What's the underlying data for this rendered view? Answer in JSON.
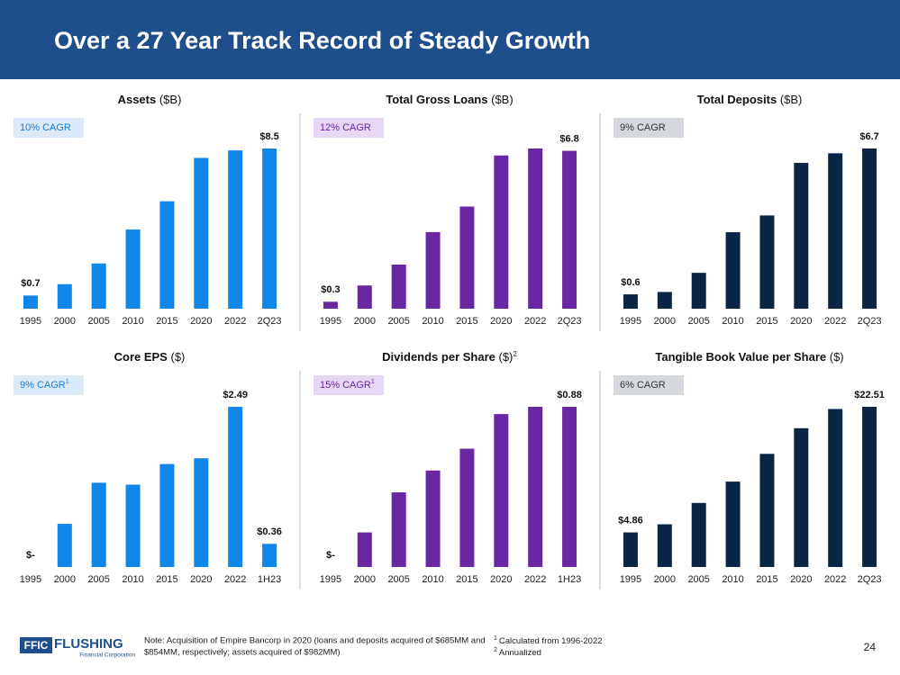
{
  "title": "Over a 27 Year Track Record of Steady Growth",
  "chart_data": [
    {
      "type": "bar",
      "title": "Assets",
      "unit": "($B)",
      "annotation": "10% CAGR",
      "categories": [
        "1995",
        "2000",
        "2005",
        "2010",
        "2015",
        "2020",
        "2022",
        "2Q23"
      ],
      "values": [
        0.7,
        1.3,
        2.4,
        4.2,
        5.7,
        8.0,
        8.4,
        8.5
      ],
      "value_labels": [
        "$0.7",
        null,
        null,
        null,
        null,
        null,
        null,
        "$8.5"
      ],
      "color": "#0f86e8"
    },
    {
      "type": "bar",
      "title": "Total Gross Loans",
      "unit": "($B)",
      "annotation": "12% CAGR",
      "categories": [
        "1995",
        "2000",
        "2005",
        "2010",
        "2015",
        "2020",
        "2022",
        "2Q23"
      ],
      "values": [
        0.3,
        1.0,
        1.9,
        3.3,
        4.4,
        6.6,
        6.9,
        6.8
      ],
      "value_labels": [
        "$0.3",
        null,
        null,
        null,
        null,
        null,
        null,
        "$6.8"
      ],
      "color": "#6a27a3"
    },
    {
      "type": "bar",
      "title": "Total Deposits",
      "unit": "($B)",
      "annotation": "9% CAGR",
      "categories": [
        "1995",
        "2000",
        "2005",
        "2010",
        "2015",
        "2020",
        "2022",
        "2Q23"
      ],
      "values": [
        0.6,
        0.7,
        1.5,
        3.2,
        3.9,
        6.1,
        6.5,
        6.7
      ],
      "value_labels": [
        "$0.6",
        null,
        null,
        null,
        null,
        null,
        null,
        "$6.7"
      ],
      "color": "#0b2545"
    },
    {
      "type": "bar",
      "title": "Core EPS",
      "unit": "($)",
      "annotation": "9% CAGR",
      "annotation_note": "1",
      "categories": [
        "1995",
        "2000",
        "2005",
        "2010",
        "2015",
        "2020",
        "2022",
        "1H23"
      ],
      "values": [
        0,
        0.67,
        1.31,
        1.28,
        1.6,
        1.69,
        2.49,
        0.36
      ],
      "value_labels": [
        "$-",
        null,
        null,
        null,
        null,
        null,
        "$2.49",
        "$0.36"
      ],
      "color": "#0f86e8"
    },
    {
      "type": "bar",
      "title": "Dividends per Share",
      "unit": "($)",
      "unit_note": "2",
      "annotation": "15% CAGR",
      "annotation_note": "1",
      "categories": [
        "1995",
        "2000",
        "2005",
        "2010",
        "2015",
        "2020",
        "2022",
        "1H23"
      ],
      "values": [
        0,
        0.19,
        0.41,
        0.53,
        0.65,
        0.84,
        0.88,
        0.88
      ],
      "value_labels": [
        "$-",
        null,
        null,
        null,
        null,
        null,
        null,
        "$0.88"
      ],
      "color": "#6a27a3"
    },
    {
      "type": "bar",
      "title": "Tangible Book Value per Share",
      "unit": "($)",
      "annotation": "6% CAGR",
      "categories": [
        "1995",
        "2000",
        "2005",
        "2010",
        "2015",
        "2020",
        "2022",
        "2Q23"
      ],
      "values": [
        4.86,
        6.0,
        9.0,
        12.0,
        15.9,
        19.5,
        22.2,
        22.51
      ],
      "value_labels": [
        "$4.86",
        null,
        null,
        null,
        null,
        null,
        null,
        "$22.51"
      ],
      "color": "#0b2545"
    }
  ],
  "footer": {
    "logo": "FFIC",
    "logo_name": "FLUSHING",
    "logo_sub": "Financial Corporation",
    "note": [
      "Note: Acquisition of Empire Bancorp in 2020 (loans and deposits acquired of $685MM and",
      "$854MM, respectively; assets acquired of $982MM)"
    ],
    "footnotes": [
      {
        "mark": "1",
        "text": "Calculated from 1996-2022"
      },
      {
        "mark": "2",
        "text": "Annualized"
      }
    ],
    "page": "24"
  }
}
